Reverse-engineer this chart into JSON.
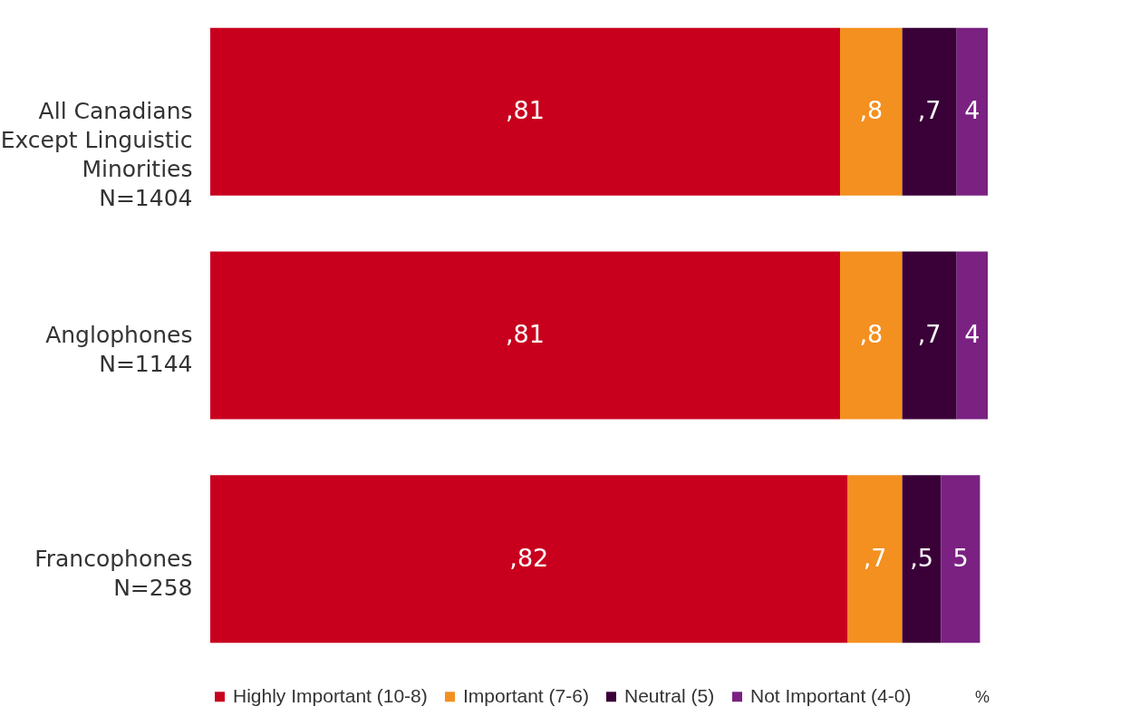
{
  "chart_data": {
    "type": "bar",
    "orientation": "horizontal",
    "stacked": true,
    "legend": "bottom",
    "categories": [
      "All Canadians\nExcept Linguistic\nMinorities\nN=1404",
      "Anglophones\n\nN=1144",
      "Francophones\nN=258"
    ],
    "series": [
      {
        "name": "Highly Important (10-8)",
        "color": "#c8001e",
        "values": [
          81,
          81,
          82
        ],
        "value_labels": [
          ",81",
          ",81",
          ",82"
        ]
      },
      {
        "name": "Important (7-6)",
        "color": "#f39020",
        "values": [
          8,
          8,
          7
        ],
        "value_labels": [
          ",8",
          ",8",
          ",7"
        ]
      },
      {
        "name": "Neutral (5)",
        "color": "#3a0038",
        "values": [
          7,
          7,
          5
        ],
        "value_labels": [
          ",7",
          ",7",
          ",5"
        ]
      },
      {
        "name": "Not Important (4-0)",
        "color": "#7a2182",
        "values": [
          4,
          4,
          5
        ],
        "value_labels": [
          "4",
          "4",
          "5"
        ]
      }
    ],
    "annotations": [
      "%"
    ]
  }
}
